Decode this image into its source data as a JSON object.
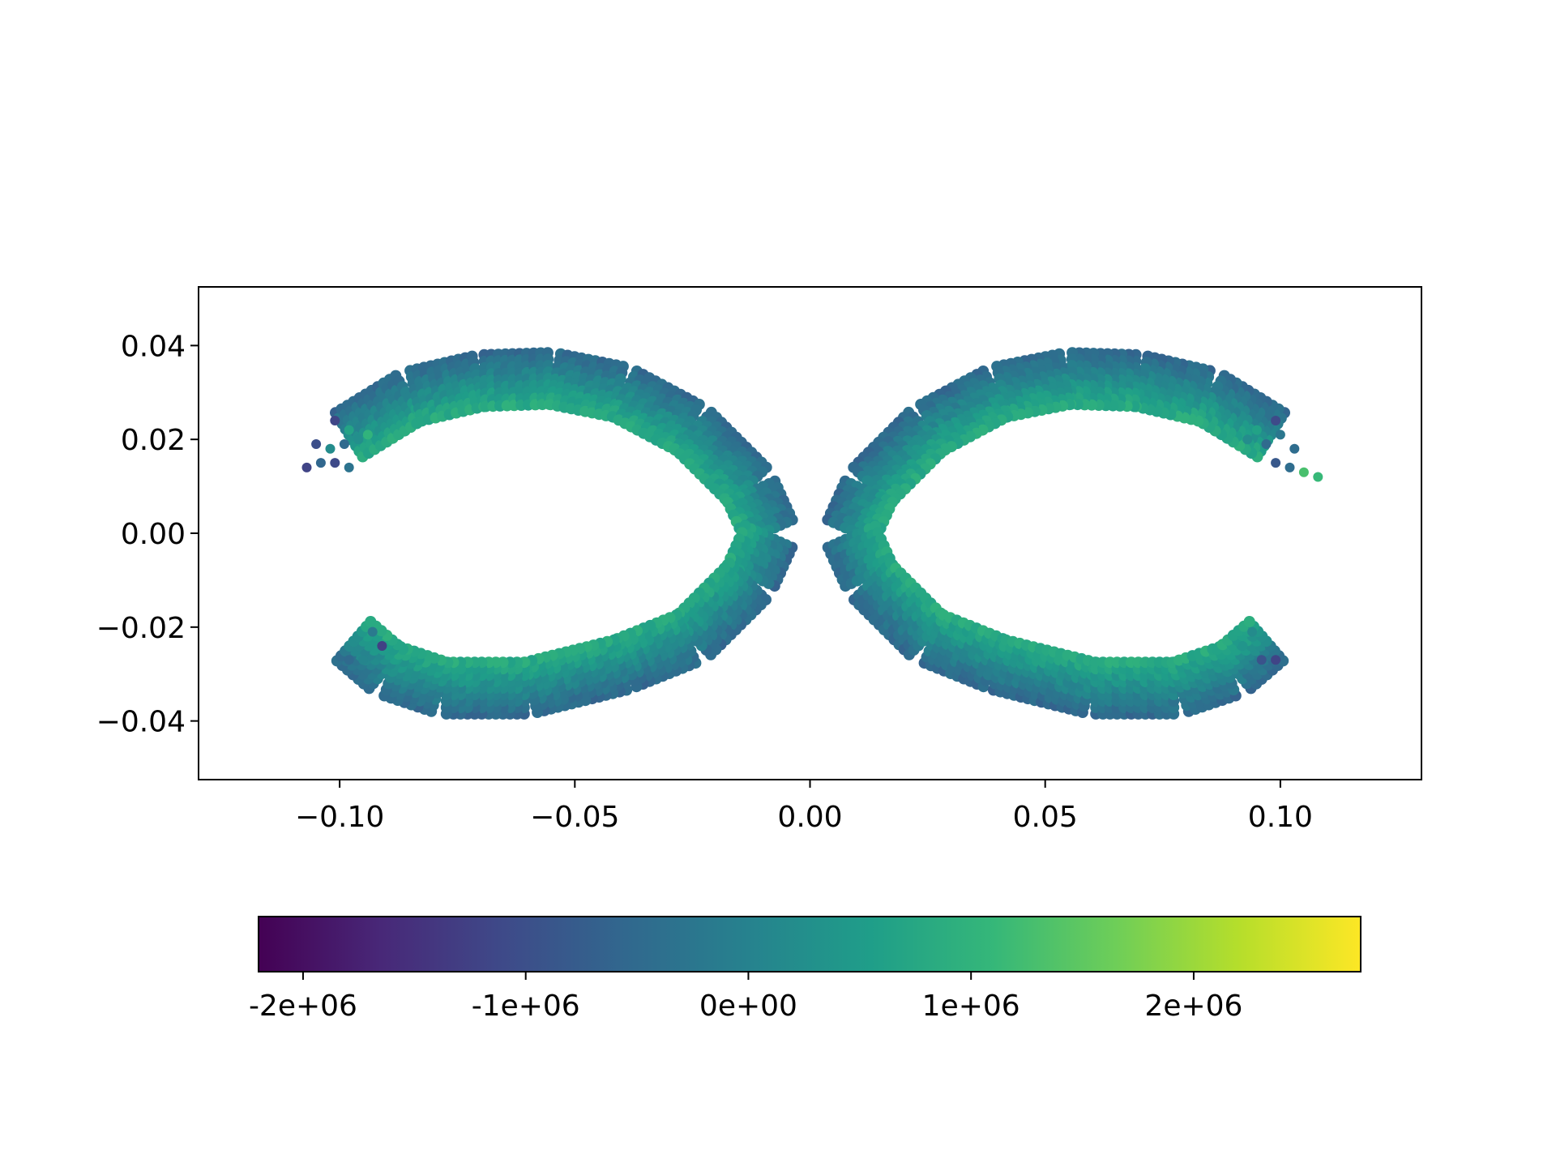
{
  "chart_data": {
    "type": "scatter",
    "title": "",
    "xlabel": "",
    "ylabel": "",
    "xlim": [
      -0.13,
      0.13
    ],
    "ylim": [
      -0.0525,
      0.0525
    ],
    "grid": false,
    "x_ticks": [
      {
        "value": -0.1,
        "label": "−0.10"
      },
      {
        "value": -0.05,
        "label": "−0.05"
      },
      {
        "value": 0.0,
        "label": "0.00"
      },
      {
        "value": 0.05,
        "label": "0.05"
      },
      {
        "value": 0.1,
        "label": "0.10"
      }
    ],
    "y_ticks": [
      {
        "value": 0.04,
        "label": "0.04"
      },
      {
        "value": 0.02,
        "label": "0.02"
      },
      {
        "value": 0.0,
        "label": "0.00"
      },
      {
        "value": -0.02,
        "label": "−0.02"
      },
      {
        "value": -0.04,
        "label": "−0.04"
      }
    ],
    "colormap": "viridis",
    "colors": {
      "viridis": [
        "#440154",
        "#482878",
        "#3e4a89",
        "#31688e",
        "#26828e",
        "#1f9e89",
        "#35b779",
        "#6ece58",
        "#b5de2b",
        "#fde725"
      ]
    },
    "colorbar": {
      "orientation": "horizontal",
      "range": [
        -2200000,
        2750000
      ],
      "ticks": [
        {
          "value": -2000000,
          "label": "-2e+06"
        },
        {
          "value": -1000000,
          "label": "-1e+06"
        },
        {
          "value": 0,
          "label": "0e+00"
        },
        {
          "value": 1000000,
          "label": "1e+06"
        },
        {
          "value": 2000000,
          "label": "2e+06"
        }
      ]
    },
    "series": [
      {
        "shape": "C-shaped band opening to the left",
        "centerline": [
          {
            "x": -0.098,
            "y": 0.021
          },
          {
            "x": -0.085,
            "y": 0.029
          },
          {
            "x": -0.07,
            "y": 0.0325
          },
          {
            "x": -0.055,
            "y": 0.033
          },
          {
            "x": -0.04,
            "y": 0.03
          },
          {
            "x": -0.025,
            "y": 0.022
          },
          {
            "x": -0.013,
            "y": 0.01
          },
          {
            "x": -0.0085,
            "y": 0.0
          },
          {
            "x": -0.013,
            "y": -0.01
          },
          {
            "x": -0.025,
            "y": -0.022
          },
          {
            "x": -0.04,
            "y": -0.028
          },
          {
            "x": -0.06,
            "y": -0.033
          },
          {
            "x": -0.078,
            "y": -0.033
          },
          {
            "x": -0.09,
            "y": -0.029
          },
          {
            "x": -0.097,
            "y": -0.023
          }
        ],
        "band_width_y": 0.011,
        "value_outer": -500000,
        "value_inner": 800000
      },
      {
        "shape": "C-shaped band opening to the right (mirror)",
        "centerline": [
          {
            "x": 0.098,
            "y": 0.021
          },
          {
            "x": 0.085,
            "y": 0.029
          },
          {
            "x": 0.07,
            "y": 0.0325
          },
          {
            "x": 0.055,
            "y": 0.033
          },
          {
            "x": 0.04,
            "y": 0.03
          },
          {
            "x": 0.025,
            "y": 0.022
          },
          {
            "x": 0.013,
            "y": 0.01
          },
          {
            "x": 0.0085,
            "y": 0.0
          },
          {
            "x": 0.013,
            "y": -0.01
          },
          {
            "x": 0.025,
            "y": -0.022
          },
          {
            "x": 0.04,
            "y": -0.028
          },
          {
            "x": 0.06,
            "y": -0.033
          },
          {
            "x": 0.078,
            "y": -0.033
          },
          {
            "x": 0.09,
            "y": -0.029
          },
          {
            "x": 0.097,
            "y": -0.023
          }
        ],
        "band_width_y": 0.011,
        "value_outer": -500000,
        "value_inner": 800000
      }
    ],
    "scattered_tails": [
      {
        "x": -0.107,
        "y": 0.014
      },
      {
        "x": -0.104,
        "y": 0.015
      },
      {
        "x": -0.101,
        "y": 0.015
      },
      {
        "x": -0.098,
        "y": 0.014
      },
      {
        "x": -0.105,
        "y": 0.019
      },
      {
        "x": -0.102,
        "y": 0.018
      },
      {
        "x": -0.099,
        "y": 0.019
      },
      {
        "x": -0.101,
        "y": 0.024
      },
      {
        "x": -0.098,
        "y": 0.022
      },
      {
        "x": -0.096,
        "y": 0.02
      },
      {
        "x": -0.094,
        "y": 0.021
      },
      {
        "x": -0.095,
        "y": -0.027
      },
      {
        "x": -0.098,
        "y": -0.027
      },
      {
        "x": -0.093,
        "y": -0.021
      },
      {
        "x": -0.091,
        "y": -0.024
      },
      {
        "x": 0.108,
        "y": 0.012
      },
      {
        "x": 0.105,
        "y": 0.013
      },
      {
        "x": 0.102,
        "y": 0.014
      },
      {
        "x": 0.099,
        "y": 0.015
      },
      {
        "x": 0.103,
        "y": 0.018
      },
      {
        "x": 0.1,
        "y": 0.021
      },
      {
        "x": 0.097,
        "y": 0.019
      },
      {
        "x": 0.099,
        "y": 0.024
      },
      {
        "x": 0.095,
        "y": 0.022
      },
      {
        "x": 0.093,
        "y": 0.02
      },
      {
        "x": 0.096,
        "y": -0.027
      },
      {
        "x": 0.099,
        "y": -0.027
      },
      {
        "x": 0.094,
        "y": -0.021
      },
      {
        "x": 0.092,
        "y": -0.024
      }
    ]
  }
}
